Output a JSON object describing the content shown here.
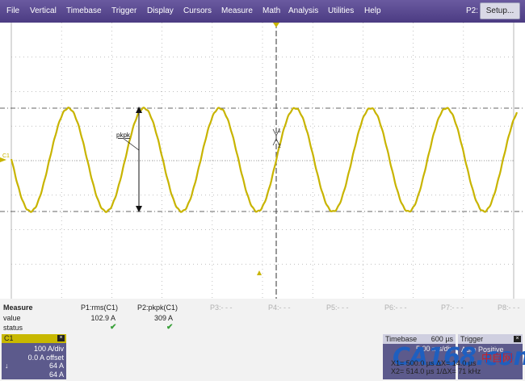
{
  "menubar": {
    "items": [
      "File",
      "Vertical",
      "Timebase",
      "Trigger",
      "Display",
      "Cursors",
      "Measure",
      "Math",
      "Analysis",
      "Utilities",
      "Help"
    ],
    "p2_label": "P2:",
    "setup_label": "Setup..."
  },
  "display": {
    "channel_marker": "C1",
    "waveform_color": "#c8b400",
    "measure_annotation": "pkpk",
    "cursor1_label": "1",
    "cursor2_label": "2"
  },
  "measure": {
    "title": "Measure",
    "row_value": "value",
    "row_status": "status",
    "params": [
      {
        "label": "P1:rms(C1)",
        "value": "102.9 A",
        "status": "✔"
      },
      {
        "label": "P2:pkpk(C1)",
        "value": "309 A",
        "status": "✔"
      },
      {
        "label": "P3:- - -"
      },
      {
        "label": "P4:- - -"
      },
      {
        "label": "P5:- - -"
      },
      {
        "label": "P6:- - -"
      },
      {
        "label": "P7:- - -"
      },
      {
        "label": "P8:- - -"
      }
    ]
  },
  "c1": {
    "title": "C1",
    "scale": "100 A/div",
    "offset": "0.0 A offset",
    "line3": "64 A",
    "line4": "64 A",
    "arrow_icon": "↓"
  },
  "timebase": {
    "title": "Timebase",
    "value": "600 µs",
    "sub": "5.00 ms/div"
  },
  "trigger": {
    "title": "Trigger",
    "sub": "Auto Positive"
  },
  "cursors": {
    "line1": "X1= 500.0 µs  ΔX= 14.0 µs",
    "line2": "X2= 514.0 µs 1/ΔX=  71 kHz"
  },
  "watermark": {
    "text": "CA168.com",
    "cn": "中自网"
  }
}
